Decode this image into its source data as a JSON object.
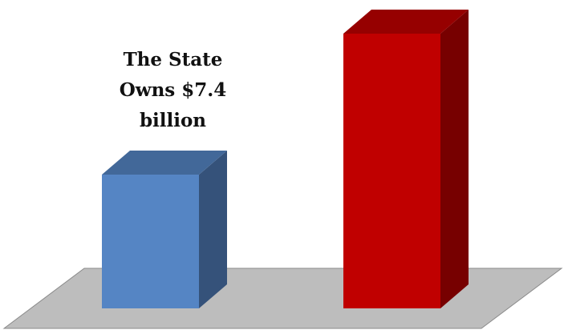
{
  "chart_data": {
    "type": "bar3d",
    "categories": [
      null,
      null
    ],
    "values": [
      7.4,
      15.2
    ],
    "value_labels": [
      "The State Owns $7.4 billion",
      null
    ],
    "colors": [
      "#5585c4",
      "#c00000"
    ]
  }
}
